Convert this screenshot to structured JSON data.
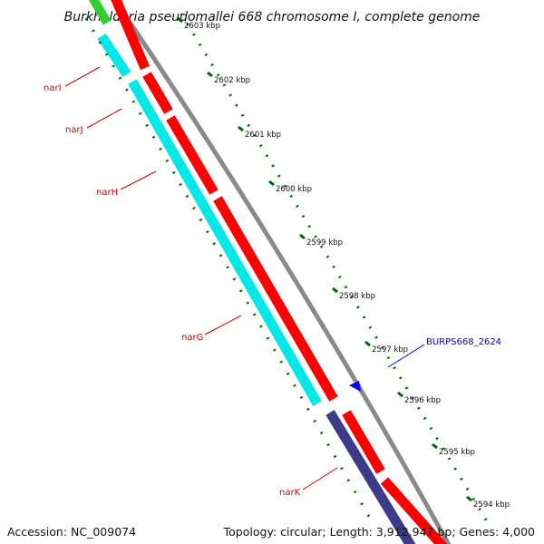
{
  "title": "Burkholderia pseudomallei 668 chromosome I, complete genome",
  "footer": {
    "accession": "Accession: NC_009074",
    "summary": "Topology: circular; Length: 3,912,947 bp; Genes: 4,000"
  },
  "ticks": [
    {
      "label": "2603 kbp"
    },
    {
      "label": "2602 kbp"
    },
    {
      "label": "2601 kbp"
    },
    {
      "label": "2600 kbp"
    },
    {
      "label": "2599 kbp"
    },
    {
      "label": "2598 kbp"
    },
    {
      "label": "2597 kbp"
    },
    {
      "label": "2596 kbp"
    },
    {
      "label": "2595 kbp"
    },
    {
      "label": "2594 kbp"
    }
  ],
  "genes": [
    {
      "name": "narI",
      "color": "#cc0000"
    },
    {
      "name": "narJ",
      "color": "#cc0000"
    },
    {
      "name": "narH",
      "color": "#cc0000"
    },
    {
      "name": "narG",
      "color": "#cc0000"
    },
    {
      "name": "narK",
      "color": "#cc0000"
    },
    {
      "name": "BURPS668_2624",
      "color": "#0000cc"
    }
  ],
  "colors": {
    "forward_cds": "#ff0000",
    "reverse_cds": "#00e8e8",
    "purple_cds": "#3e3a8a",
    "green_cds": "#33cc33",
    "backbone": "#909090",
    "tick": "#006600",
    "small_feature": "#0000ff"
  }
}
